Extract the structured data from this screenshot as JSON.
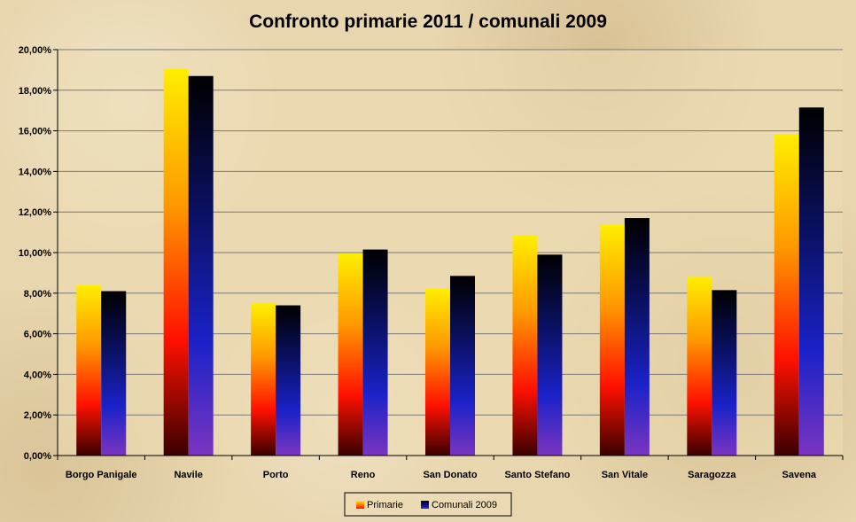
{
  "chart_data": {
    "type": "bar",
    "title": "Confronto primarie 2011 / comunali 2009",
    "categories": [
      "Borgo Panigale",
      "Navile",
      "Porto",
      "Reno",
      "San Donato",
      "Santo Stefano",
      "San Vitale",
      "Saragozza",
      "Savena"
    ],
    "series": [
      {
        "name": "Primarie",
        "values": [
          8.4,
          19.05,
          7.5,
          9.95,
          8.25,
          10.85,
          11.4,
          8.8,
          15.85
        ]
      },
      {
        "name": "Comunali 2009",
        "values": [
          8.1,
          18.7,
          7.4,
          10.15,
          8.85,
          9.9,
          11.7,
          8.15,
          17.15
        ]
      }
    ],
    "ylim": [
      0,
      20
    ],
    "ytick_step": 2,
    "ytick_labels": [
      "0,00%",
      "2,00%",
      "4,00%",
      "6,00%",
      "8,00%",
      "10,00%",
      "12,00%",
      "14,00%",
      "16,00%",
      "18,00%",
      "20,00%"
    ],
    "grid": true,
    "legend_position": "bottom",
    "colors": {
      "primarie_gradient": [
        "#ffee00",
        "#ff9900",
        "#ff1100",
        "#3a0000"
      ],
      "comunali_gradient": [
        "#000000",
        "#0a1060",
        "#1a22c8",
        "#7a35c0"
      ],
      "plot_bg": "#ecdcb5",
      "grid": "#7a7a7a"
    }
  }
}
